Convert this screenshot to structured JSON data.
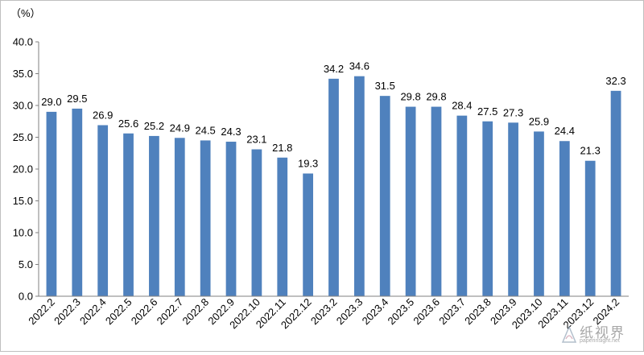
{
  "chart_data": {
    "type": "bar",
    "unit_label": "（%）",
    "categories": [
      "2022.2",
      "2022.3",
      "2022.4",
      "2022.5",
      "2022.6",
      "2022.7",
      "2022.8",
      "2022.9",
      "2022.10",
      "2022.11",
      "2022.12",
      "2023.2",
      "2023.3",
      "2023.4",
      "2023.5",
      "2023.6",
      "2023.7",
      "2023.8",
      "2023.9",
      "2023.10",
      "2023.11",
      "2023.12",
      "2024.2"
    ],
    "values": [
      29.0,
      29.5,
      26.9,
      25.6,
      25.2,
      24.9,
      24.5,
      24.3,
      23.1,
      21.8,
      19.3,
      34.2,
      34.6,
      31.5,
      29.8,
      29.8,
      28.4,
      27.5,
      27.3,
      25.9,
      24.4,
      21.3,
      32.3
    ],
    "data_labels": [
      "29.0",
      "29.5",
      "26.9",
      "25.6",
      "25.2",
      "24.9",
      "24.5",
      "24.3",
      "23.1",
      "21.8",
      "19.3",
      "34.2",
      "34.6",
      "31.5",
      "29.8",
      "29.8",
      "28.4",
      "27.5",
      "27.3",
      "25.9",
      "24.4",
      "21.3",
      "32.3"
    ],
    "yticks": [
      "0.0",
      "5.0",
      "10.0",
      "15.0",
      "20.0",
      "25.0",
      "30.0",
      "35.0",
      "40.0"
    ],
    "ylim": [
      0,
      40
    ],
    "bar_color": "#4f81bd",
    "grid": false,
    "legend": "none"
  },
  "watermark": {
    "text": "纸视界",
    "sub": "paperinsight.net"
  }
}
